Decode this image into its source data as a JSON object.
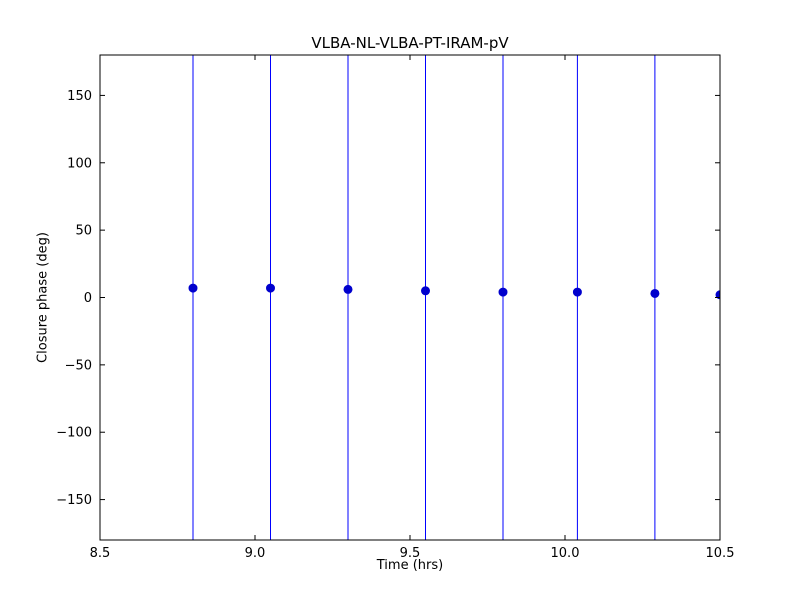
{
  "figure": {
    "background": "#ffffff",
    "border_color": "#000000"
  },
  "chart_data": {
    "type": "scatter",
    "title": "VLBA-NL-VLBA-PT-IRAM-pV",
    "xlabel": "Time (hrs)",
    "ylabel": "Closure phase (deg)",
    "xlim": [
      8.5,
      10.5
    ],
    "ylim": [
      -180,
      180
    ],
    "xticks": [
      8.5,
      9.0,
      9.5,
      10.0,
      10.5
    ],
    "xtick_labels": [
      "8.5",
      "9.0",
      "9.5",
      "10.0",
      "10.5"
    ],
    "yticks": [
      -150,
      -100,
      -50,
      0,
      50,
      100,
      150
    ],
    "ytick_labels": [
      "−150",
      "−100",
      "−50",
      "0",
      "50",
      "100",
      "150"
    ],
    "grid": false,
    "legend": false,
    "tick_direction": "in",
    "tick_length": 5,
    "series": [
      {
        "name": "closure-phase-errorbar",
        "marker": "circle",
        "marker_size": 4,
        "marker_color": "#0000cd",
        "errorbar_color": "#0000ff",
        "errorbars_span_full_axis": true,
        "x": [
          8.8,
          9.05,
          9.3,
          9.55,
          9.8,
          10.04,
          10.29,
          10.5
        ],
        "y": [
          7,
          7,
          6,
          5,
          4,
          4,
          3,
          2
        ]
      }
    ]
  }
}
